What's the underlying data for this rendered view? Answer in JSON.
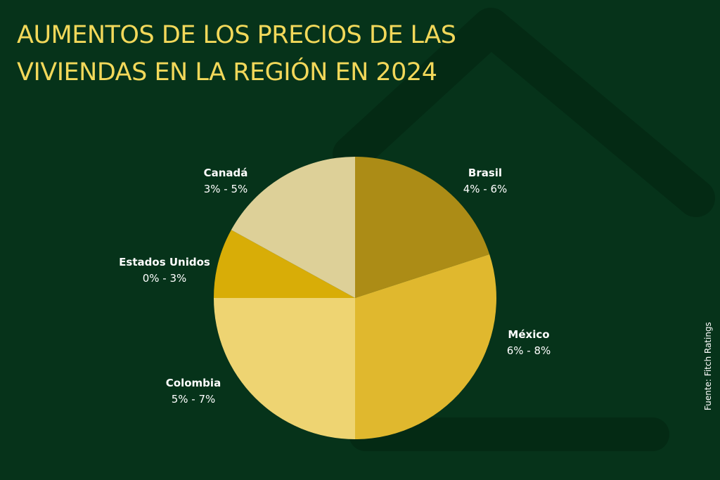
{
  "title_lines": [
    "AUMENTOS DE LOS PRECIOS DE  LAS",
    "VIVIENDAS EN LA REGIÓN EN 2024"
  ],
  "source": "Fuente:  Fitch Ratings",
  "colors": {
    "background": "#06331a",
    "house_outline": "#042a14",
    "title": "#f2d85a",
    "label_text": "#ffffff"
  },
  "chart_data": {
    "type": "pie",
    "title": "AUMENTOS DE LOS PRECIOS DE  LAS VIVIENDAS EN LA REGIÓN EN 2024",
    "start": "top",
    "direction": "clockwise",
    "slices": [
      {
        "name": "Brasil",
        "range": "4% - 6%",
        "share": 0.2,
        "color": "#ac8c16"
      },
      {
        "name": "México",
        "range": "6% - 8%",
        "share": 0.3,
        "color": "#e0b82e"
      },
      {
        "name": "Colombia",
        "range": "5% - 7%",
        "share": 0.25,
        "color": "#eed472"
      },
      {
        "name": "Estados Unidos",
        "range": "0% - 3%",
        "share": 0.08,
        "color": "#d8ad07"
      },
      {
        "name": "Canadá",
        "range": "3% - 5%",
        "share": 0.17,
        "color": "#ddd098"
      }
    ]
  }
}
